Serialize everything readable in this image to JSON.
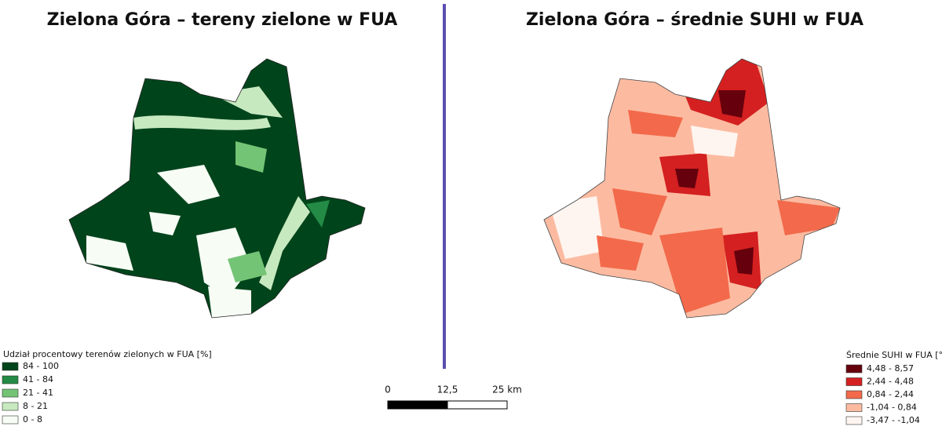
{
  "left_map": {
    "title": "Zielona Góra – tereny zielone w FUA",
    "legend": {
      "title": "Udział procentowy terenów zielonych w FUA [%]",
      "items": [
        {
          "label": "84 - 100",
          "color": "#00441b"
        },
        {
          "label": "41 - 84",
          "color": "#238b45"
        },
        {
          "label": "21 - 41",
          "color": "#74c476"
        },
        {
          "label": "8 - 21",
          "color": "#c7e9c0"
        },
        {
          "label": "0 - 8",
          "color": "#f7fcf5"
        }
      ]
    }
  },
  "right_map": {
    "title": "Zielona Góra – średnie SUHI w FUA",
    "legend": {
      "title": "Średnie SUHI w FUA [°C]",
      "items": [
        {
          "label": "4,48 - 8,57",
          "color": "#67000d"
        },
        {
          "label": "2,44 - 4,48",
          "color": "#d42020"
        },
        {
          "label": "0,84 - 2,44",
          "color": "#f26a4b"
        },
        {
          "label": "-1,04 - 0,84",
          "color": "#fcbba1"
        },
        {
          "label": "-3,47 - -1,04",
          "color": "#fff5f0"
        }
      ]
    }
  },
  "scale_bar": {
    "labels": [
      "0",
      "12,5",
      "25 km"
    ]
  }
}
